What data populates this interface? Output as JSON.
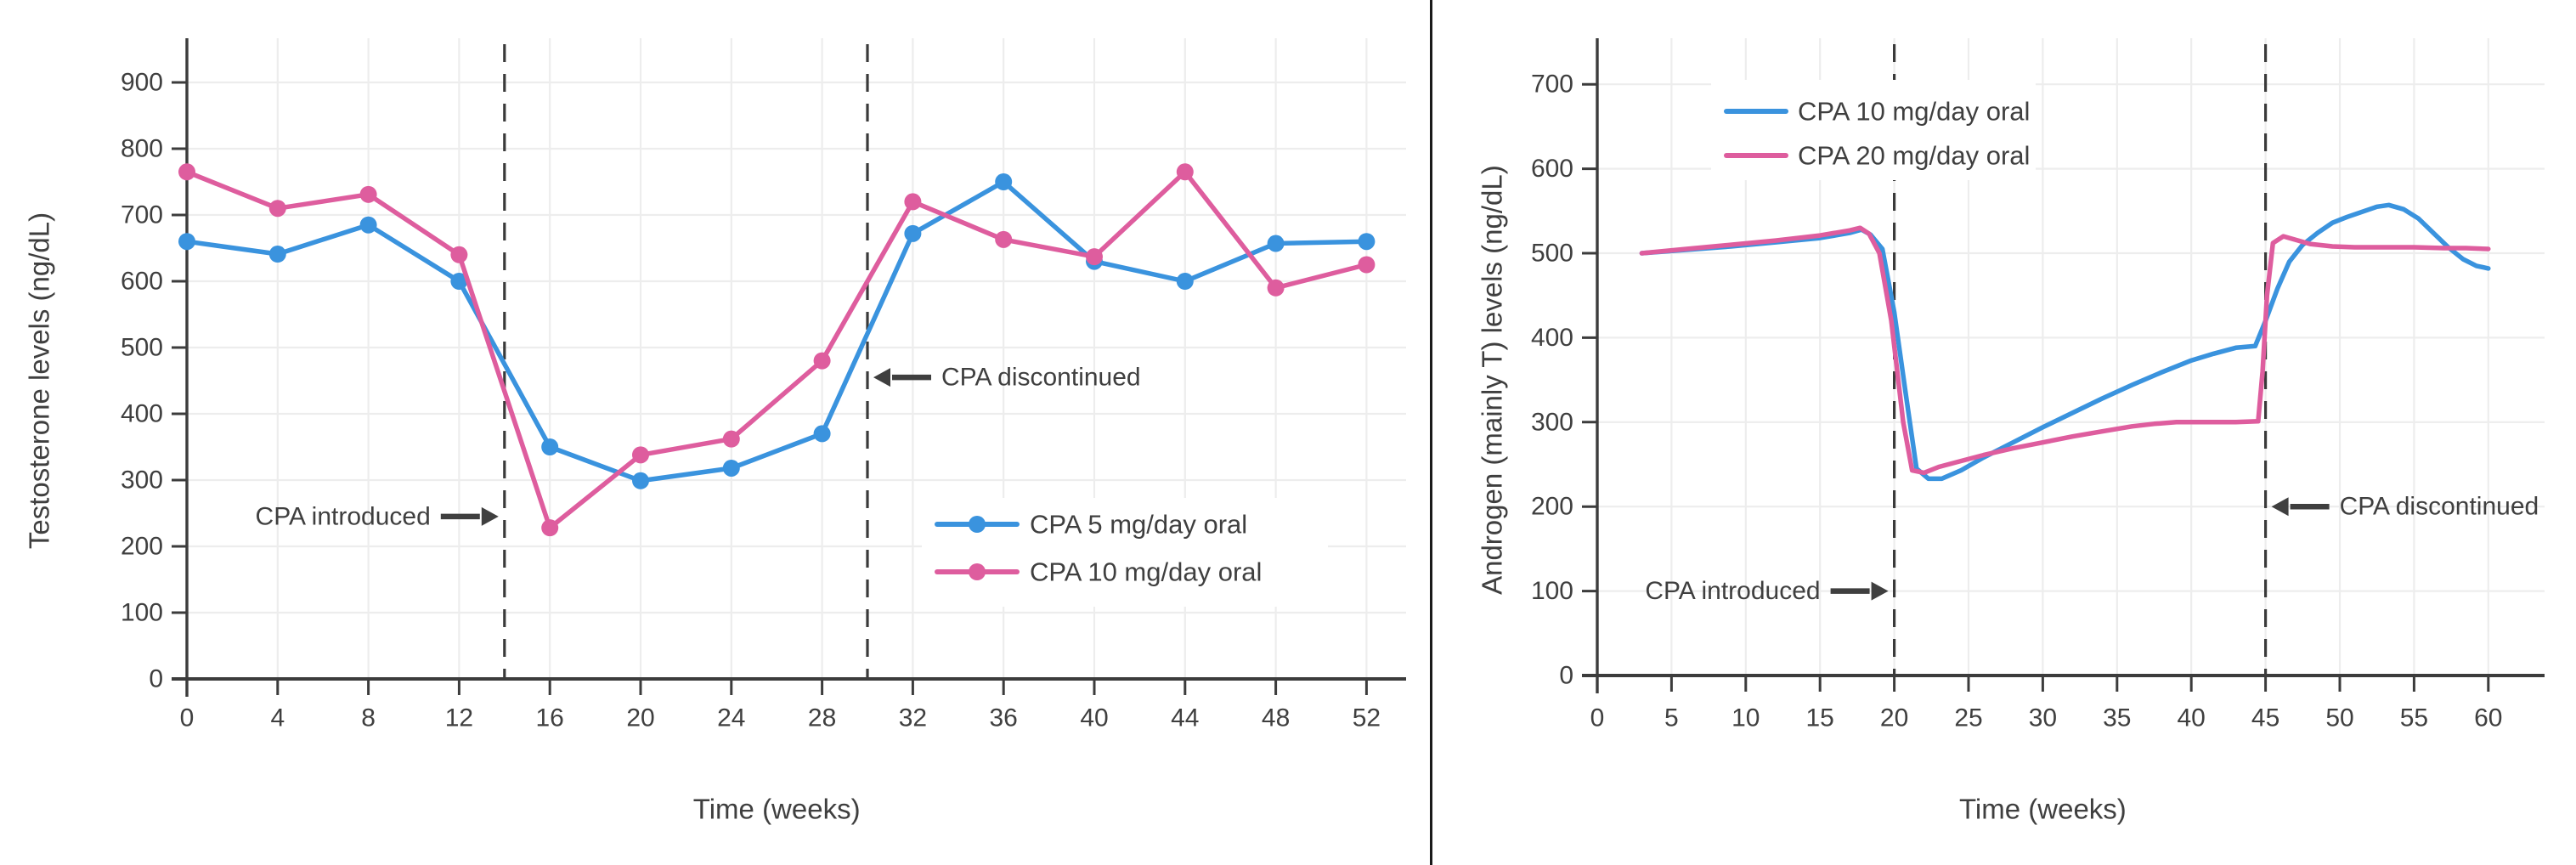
{
  "figure": {
    "background": "#ffffff",
    "divider_color": "#1a1a1a",
    "text_color": "#3f3f3f",
    "axis_color": "#3c3c3c",
    "grid_color": "#ededed",
    "annotation_color": "#3f3f3f",
    "dashed_line_color": "#3a3a3a"
  },
  "chart_data": [
    {
      "type": "line",
      "panel": "left",
      "title": "",
      "xlabel": "Time (weeks)",
      "ylabel": "Testosterone levels (ng/dL)",
      "xlim": [
        0,
        54
      ],
      "ylim": [
        0,
        940
      ],
      "xticks": [
        0,
        4,
        8,
        12,
        16,
        20,
        24,
        28,
        32,
        36,
        40,
        44,
        48,
        52
      ],
      "yticks": [
        0,
        100,
        200,
        300,
        400,
        500,
        600,
        700,
        800,
        900
      ],
      "grid": true,
      "markers": true,
      "legend_position": "inside lower right",
      "series": [
        {
          "name": "CPA 5 mg/day oral",
          "color": "#3a93de",
          "x": [
            0,
            4,
            8,
            12,
            16,
            20,
            24,
            28,
            32,
            36,
            40,
            44,
            48,
            52
          ],
          "y": [
            660,
            641,
            685,
            600,
            350,
            299,
            318,
            370,
            672,
            750,
            630,
            600,
            657,
            660
          ]
        },
        {
          "name": "CPA 10 mg/day oral",
          "color": "#de5d9e",
          "x": [
            0,
            4,
            8,
            12,
            16,
            20,
            24,
            28,
            32,
            36,
            40,
            44,
            48,
            52
          ],
          "y": [
            765,
            710,
            731,
            640,
            228,
            338,
            362,
            480,
            720,
            663,
            637,
            765,
            590,
            625
          ]
        }
      ],
      "vlines": [
        {
          "x": 14,
          "style": "dashed"
        },
        {
          "x": 30,
          "style": "dashed"
        }
      ],
      "annotations": [
        {
          "text": "CPA introduced",
          "arrow": "right",
          "at_week": 14,
          "at_value": 245
        },
        {
          "text": "CPA discontinued",
          "arrow": "left",
          "at_week": 30,
          "at_value": 455
        }
      ]
    },
    {
      "type": "line",
      "panel": "right",
      "title": "",
      "xlabel": "Time (weeks)",
      "ylabel": "Androgen (mainly T) levels (ng/dL)",
      "xlim": [
        0,
        63
      ],
      "ylim": [
        0,
        750
      ],
      "xticks": [
        0,
        5,
        10,
        15,
        20,
        25,
        30,
        35,
        40,
        45,
        50,
        55,
        60
      ],
      "yticks": [
        0,
        100,
        200,
        300,
        400,
        500,
        600,
        700
      ],
      "grid": true,
      "markers": false,
      "legend_position": "inside upper left",
      "series": [
        {
          "name": "CPA 10 mg/day oral",
          "color": "#3a93de",
          "x": [
            3,
            6,
            9,
            12,
            15,
            17,
            17.8,
            18.4,
            19.2,
            20,
            20.8,
            21.5,
            22.3,
            23.2,
            24.5,
            26,
            28,
            30,
            32,
            34,
            36,
            38,
            40,
            41.5,
            43,
            44.3,
            45,
            45.8,
            46.6,
            47.5,
            48.5,
            49.5,
            50.5,
            51.5,
            52.5,
            53.3,
            54.3,
            55.3,
            56.3,
            57.3,
            58.3,
            59.2,
            60
          ],
          "y": [
            500,
            504,
            508,
            513,
            518,
            524,
            528,
            522,
            505,
            430,
            330,
            245,
            233,
            233,
            243,
            258,
            276,
            294,
            311,
            328,
            344,
            359,
            373,
            381,
            388,
            390,
            420,
            458,
            490,
            510,
            524,
            536,
            543,
            549,
            555,
            557,
            552,
            541,
            524,
            507,
            493,
            485,
            482
          ]
        },
        {
          "name": "CPA 20 mg/day oral",
          "color": "#de5d9e",
          "x": [
            3,
            6,
            9,
            12,
            15,
            17,
            17.7,
            18.3,
            19,
            19.8,
            20.6,
            21.2,
            22,
            23,
            24.5,
            26,
            28,
            30,
            32,
            34,
            36,
            37.5,
            39,
            41,
            43,
            44.5,
            44.8,
            45.1,
            45.5,
            46.2,
            47,
            48,
            49.5,
            51,
            53,
            55,
            57,
            58.5,
            60
          ],
          "y": [
            500,
            505,
            510,
            515,
            521,
            527,
            530,
            523,
            500,
            420,
            300,
            243,
            240,
            247,
            254,
            261,
            269,
            276,
            283,
            289,
            295,
            298,
            300,
            300,
            300,
            301,
            360,
            450,
            512,
            520,
            516,
            511,
            508,
            507,
            507,
            507,
            506,
            506,
            505
          ]
        }
      ],
      "vlines": [
        {
          "x": 20,
          "style": "dashed"
        },
        {
          "x": 45,
          "style": "dashed"
        }
      ],
      "annotations": [
        {
          "text": "CPA introduced",
          "arrow": "right",
          "at_week": 20,
          "at_value": 100
        },
        {
          "text": "CPA discontinued",
          "arrow": "left",
          "at_week": 45,
          "at_value": 200
        }
      ]
    }
  ]
}
